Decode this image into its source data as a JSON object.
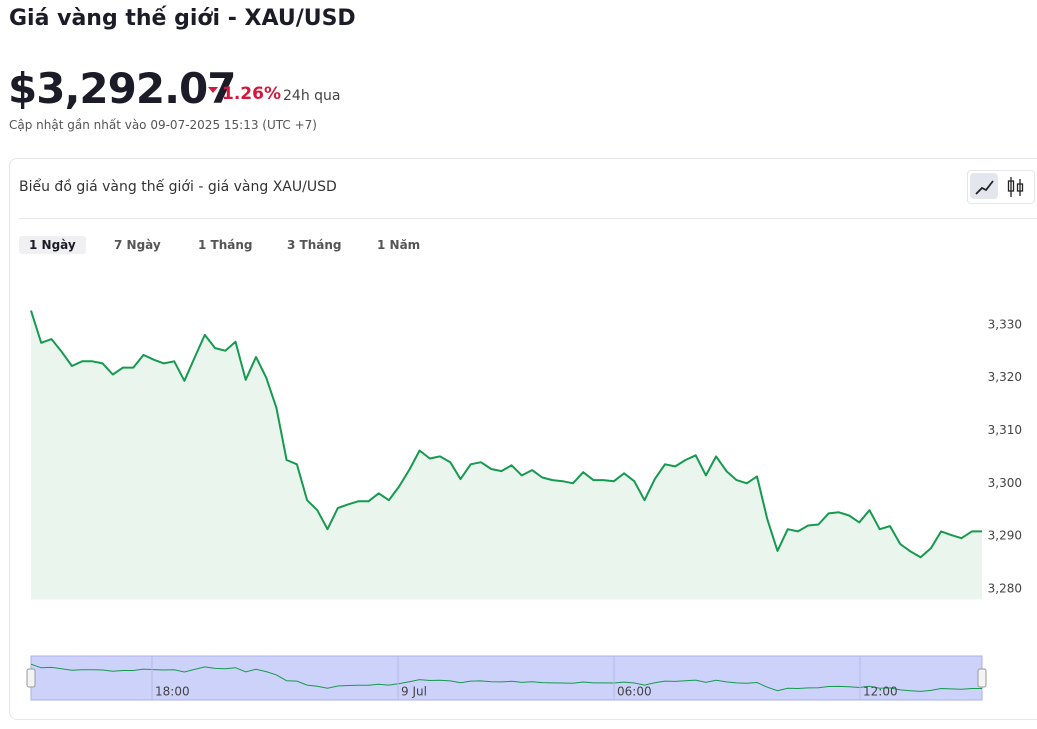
{
  "header": {
    "title": "Giá vàng thế giới - XAU/USD",
    "price": "$3,292.07",
    "change": "1.26%",
    "period": "24h qua",
    "updated": "Cập nhật gần nhất vào 09-07-2025 15:13 (UTC +7)"
  },
  "card": {
    "title": "Biểu đồ giá vàng thế giới - giá vàng XAU/USD",
    "tabs": [
      "1 Ngày",
      "7 Ngày",
      "1 Tháng",
      "3 Tháng",
      "1 Năm"
    ]
  },
  "chart_data": {
    "type": "line",
    "color": "#169a4f",
    "fill": "#eaf5ee",
    "values": [
      3332.7,
      3326.6,
      3327.3,
      3324.9,
      3322.2,
      3323.1,
      3323.1,
      3322.7,
      3320.6,
      3321.9,
      3321.9,
      3324.3,
      3323.4,
      3322.7,
      3323.1,
      3319.4,
      3323.8,
      3328.1,
      3325.6,
      3325.1,
      3326.8,
      3319.6,
      3323.9,
      3320,
      3314.3,
      3304.4,
      3303.6,
      3296.8,
      3294.9,
      3291.3,
      3295.3,
      3296,
      3296.6,
      3296.6,
      3298.1,
      3296.8,
      3299.4,
      3302.6,
      3306.2,
      3304.7,
      3305.1,
      3304,
      3300.8,
      3303.6,
      3304,
      3302.7,
      3302.3,
      3303.4,
      3301.5,
      3302.5,
      3301.1,
      3300.6,
      3300.4,
      3300,
      3302.1,
      3300.6,
      3300.6,
      3300.4,
      3301.9,
      3300.4,
      3296.8,
      3300.8,
      3303.6,
      3303.2,
      3304.4,
      3305.3,
      3301.5,
      3305.1,
      3302.3,
      3300.6,
      3300,
      3301.3,
      3293.2,
      3287.2,
      3291.3,
      3290.9,
      3292,
      3292.2,
      3294.3,
      3294.5,
      3293.9,
      3292.6,
      3294.9,
      3291.3,
      3291.9,
      3288.5,
      3287.1,
      3286,
      3287.7,
      3290.9,
      3290.2,
      3289.6,
      3290.9,
      3290.9
    ],
    "ylim": [
      3278,
      3340
    ],
    "yticks": [
      {
        "value": 3280,
        "label": "3,280"
      },
      {
        "value": 3290,
        "label": "3,290"
      },
      {
        "value": 3300,
        "label": "3,300"
      },
      {
        "value": 3310,
        "label": "3,310"
      },
      {
        "value": 3320,
        "label": "3,320"
      },
      {
        "value": 3330,
        "label": "3,330"
      }
    ],
    "navigator_labels": [
      "18:00",
      "9 Jul",
      "06:00",
      "12:00"
    ]
  }
}
